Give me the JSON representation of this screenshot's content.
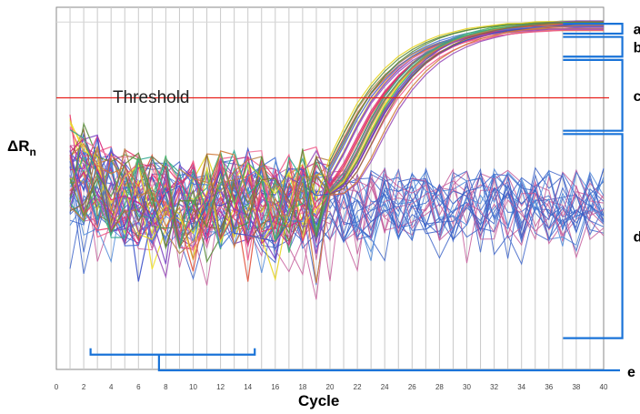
{
  "chart_data": {
    "type": "line",
    "title": "",
    "xlabel": "Cycle",
    "ylabel": "ΔR",
    "ylabel_subscript": "n",
    "xlim": [
      0,
      40
    ],
    "ylim": [
      -1.0,
      1.2
    ],
    "x_ticks": [
      "0",
      "2",
      "4",
      "6",
      "8",
      "10",
      "12",
      "14",
      "16",
      "18",
      "20",
      "22",
      "24",
      "26",
      "28",
      "30",
      "32",
      "34",
      "36",
      "38",
      "40"
    ],
    "grid": {
      "vertical": true,
      "horizontal": false
    },
    "threshold": {
      "label": "Threshold",
      "value": 0.65,
      "color": "#e8201c"
    },
    "brackets": [
      {
        "label": "a",
        "x": [
          37.5,
          41.5
        ],
        "y": [
          1.04,
          1.1
        ]
      },
      {
        "label": "b",
        "x": [
          37.5,
          41.5
        ],
        "y": [
          0.9,
          1.02
        ]
      },
      {
        "label": "c",
        "x": [
          37.5,
          41.5
        ],
        "y": [
          0.45,
          0.88
        ]
      },
      {
        "label": "d",
        "x": [
          37.5,
          41.5
        ],
        "y": [
          -0.81,
          0.43
        ]
      },
      {
        "label": "e",
        "x": [
          2.5,
          14.5
        ],
        "y": [
          -0.91,
          -0.91
        ]
      }
    ],
    "amplified_series_count": 34,
    "background_series_count": 26,
    "series": [
      {
        "name": "",
        "values": [
          [
            1,
            0.25
          ],
          [
            3,
            0.14
          ],
          [
            5,
            0.05
          ],
          [
            7,
            0.02
          ],
          [
            9,
            0.0
          ],
          [
            11,
            0.02
          ],
          [
            13,
            0.04
          ],
          [
            15,
            0.05
          ],
          [
            17,
            0.05
          ],
          [
            19,
            0.07
          ],
          [
            20,
            0.15
          ],
          [
            21,
            0.3
          ],
          [
            22,
            0.47
          ],
          [
            23,
            0.62
          ],
          [
            24,
            0.73
          ],
          [
            25,
            0.82
          ],
          [
            26,
            0.89
          ],
          [
            27,
            0.94
          ],
          [
            28,
            0.98
          ],
          [
            29,
            1.01
          ],
          [
            30,
            1.03
          ],
          [
            31,
            1.05
          ],
          [
            32,
            1.06
          ],
          [
            33,
            1.07
          ],
          [
            34,
            1.08
          ],
          [
            35,
            1.08
          ],
          [
            36,
            1.09
          ],
          [
            37,
            1.09
          ],
          [
            38,
            1.09
          ],
          [
            39,
            1.09
          ],
          [
            40,
            1.09
          ]
        ]
      }
    ],
    "series_colors": [
      "#e6d420",
      "#f2e12a",
      "#e83a6a",
      "#ef5b8a",
      "#d9267a",
      "#c4327e",
      "#3b50c8",
      "#4a76d6",
      "#7b45c2",
      "#9a4fba",
      "#2fa88e",
      "#44b36a",
      "#d07a3a",
      "#b8864a",
      "#8c6a3a",
      "#5c8c3c",
      "#e0523c",
      "#f07aa0"
    ]
  }
}
